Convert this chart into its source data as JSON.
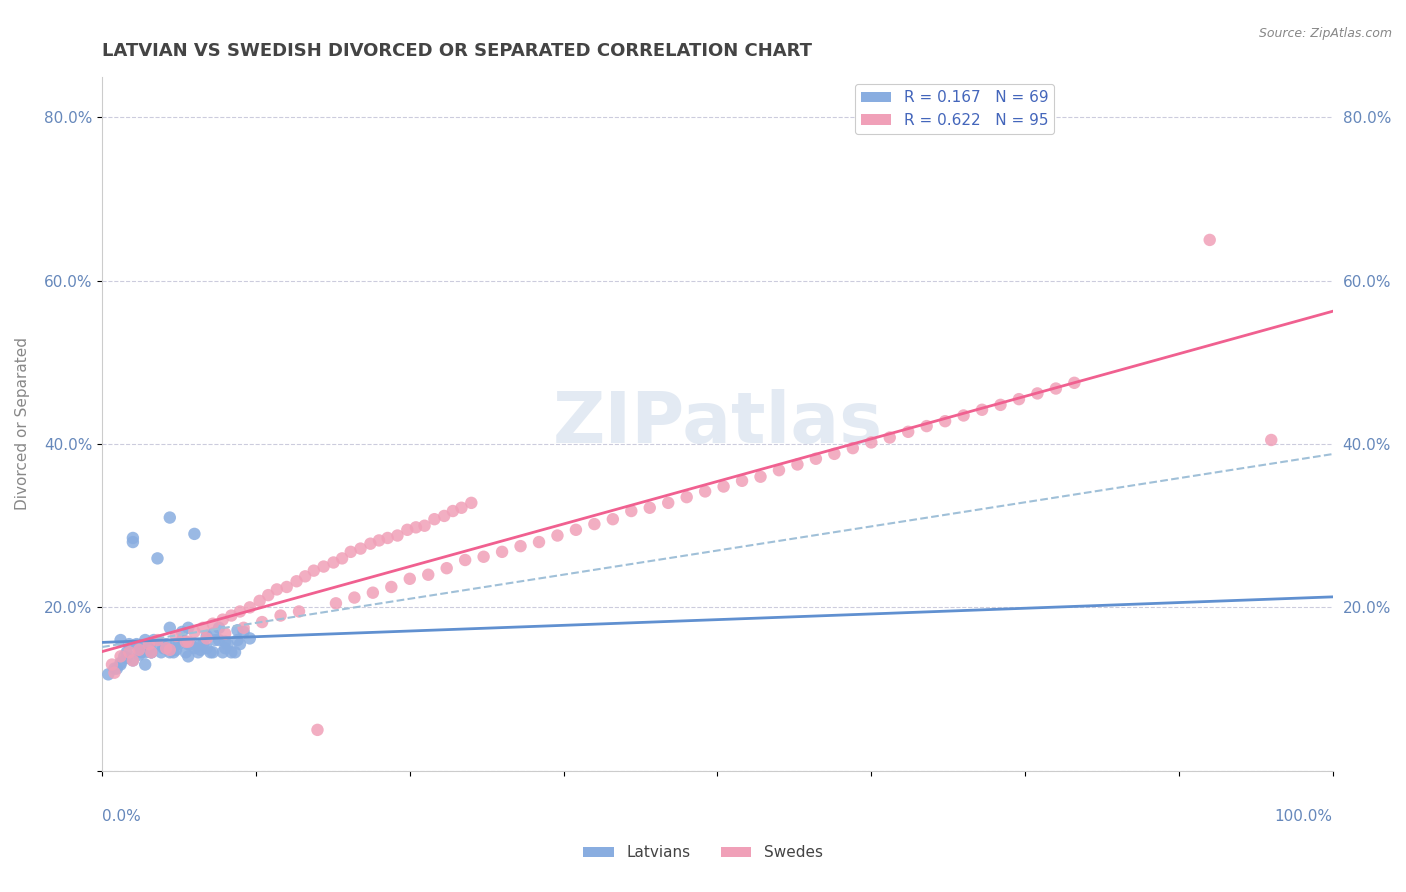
{
  "title": "LATVIAN VS SWEDISH DIVORCED OR SEPARATED CORRELATION CHART",
  "source": "Source: ZipAtlas.com",
  "ylabel": "Divorced or Separated",
  "legend_latvians": "Latvians",
  "legend_swedes": "Swedes",
  "r_latvian": 0.167,
  "n_latvian": 69,
  "r_swedish": 0.622,
  "n_swedish": 95,
  "xlim": [
    0,
    1.0
  ],
  "ylim": [
    0,
    0.85
  ],
  "yticks": [
    0.0,
    0.2,
    0.4,
    0.6,
    0.8
  ],
  "ytick_labels": [
    "",
    "20.0%",
    "40.0%",
    "60.0%",
    "80.0%"
  ],
  "color_latvian": "#89ADE0",
  "color_swedish": "#F0A0B8",
  "color_latvian_line": "#6090D0",
  "color_swedish_line": "#F06090",
  "color_dashed_line": "#A0C0D8",
  "tick_color": "#6688BB",
  "grid_color": "#CCCCDD",
  "latvian_scatter_x": [
    0.012,
    0.018,
    0.022,
    0.025,
    0.03,
    0.035,
    0.04,
    0.045,
    0.05,
    0.055,
    0.06,
    0.065,
    0.07,
    0.075,
    0.08,
    0.085,
    0.09,
    0.095,
    0.1,
    0.105,
    0.11,
    0.015,
    0.02,
    0.028,
    0.032,
    0.038,
    0.042,
    0.048,
    0.052,
    0.058,
    0.062,
    0.068,
    0.072,
    0.078,
    0.082,
    0.088,
    0.092,
    0.098,
    0.102,
    0.108,
    0.112,
    0.025,
    0.055,
    0.045,
    0.075,
    0.035,
    0.065,
    0.085,
    0.015,
    0.095,
    0.115,
    0.04,
    0.07,
    0.06,
    0.05,
    0.08,
    0.03,
    0.02,
    0.01,
    0.1,
    0.12,
    0.005,
    0.09,
    0.11,
    0.07,
    0.015,
    0.025,
    0.055,
    0.035
  ],
  "latvian_scatter_y": [
    0.125,
    0.14,
    0.155,
    0.135,
    0.15,
    0.16,
    0.145,
    0.155,
    0.15,
    0.145,
    0.155,
    0.16,
    0.14,
    0.15,
    0.155,
    0.15,
    0.145,
    0.16,
    0.15,
    0.145,
    0.16,
    0.16,
    0.145,
    0.155,
    0.145,
    0.15,
    0.16,
    0.145,
    0.155,
    0.145,
    0.155,
    0.145,
    0.155,
    0.145,
    0.155,
    0.145,
    0.16,
    0.145,
    0.155,
    0.145,
    0.155,
    0.28,
    0.31,
    0.26,
    0.29,
    0.13,
    0.17,
    0.165,
    0.13,
    0.175,
    0.17,
    0.145,
    0.155,
    0.148,
    0.152,
    0.148,
    0.142,
    0.138,
    0.125,
    0.158,
    0.162,
    0.118,
    0.168,
    0.172,
    0.175,
    0.132,
    0.285,
    0.175,
    0.145
  ],
  "swedish_scatter_x": [
    0.008,
    0.015,
    0.022,
    0.03,
    0.038,
    0.045,
    0.052,
    0.06,
    0.068,
    0.075,
    0.082,
    0.09,
    0.098,
    0.105,
    0.112,
    0.12,
    0.128,
    0.135,
    0.142,
    0.15,
    0.158,
    0.165,
    0.172,
    0.18,
    0.188,
    0.195,
    0.202,
    0.21,
    0.218,
    0.225,
    0.232,
    0.24,
    0.248,
    0.255,
    0.262,
    0.27,
    0.278,
    0.285,
    0.292,
    0.3,
    0.01,
    0.025,
    0.04,
    0.055,
    0.07,
    0.085,
    0.1,
    0.115,
    0.13,
    0.145,
    0.16,
    0.175,
    0.19,
    0.205,
    0.22,
    0.235,
    0.25,
    0.265,
    0.28,
    0.295,
    0.31,
    0.325,
    0.34,
    0.355,
    0.37,
    0.385,
    0.4,
    0.415,
    0.43,
    0.445,
    0.46,
    0.475,
    0.49,
    0.505,
    0.52,
    0.535,
    0.55,
    0.565,
    0.58,
    0.595,
    0.61,
    0.625,
    0.64,
    0.655,
    0.67,
    0.685,
    0.7,
    0.715,
    0.73,
    0.745,
    0.76,
    0.775,
    0.79,
    0.9,
    0.95
  ],
  "swedish_scatter_y": [
    0.13,
    0.14,
    0.145,
    0.148,
    0.155,
    0.16,
    0.15,
    0.165,
    0.158,
    0.17,
    0.175,
    0.18,
    0.185,
    0.19,
    0.195,
    0.2,
    0.208,
    0.215,
    0.222,
    0.225,
    0.232,
    0.238,
    0.245,
    0.25,
    0.255,
    0.26,
    0.268,
    0.272,
    0.278,
    0.282,
    0.285,
    0.288,
    0.295,
    0.298,
    0.3,
    0.308,
    0.312,
    0.318,
    0.322,
    0.328,
    0.12,
    0.135,
    0.145,
    0.148,
    0.158,
    0.162,
    0.168,
    0.175,
    0.182,
    0.19,
    0.195,
    0.05,
    0.205,
    0.212,
    0.218,
    0.225,
    0.235,
    0.24,
    0.248,
    0.258,
    0.262,
    0.268,
    0.275,
    0.28,
    0.288,
    0.295,
    0.302,
    0.308,
    0.318,
    0.322,
    0.328,
    0.335,
    0.342,
    0.348,
    0.355,
    0.36,
    0.368,
    0.375,
    0.382,
    0.388,
    0.395,
    0.402,
    0.408,
    0.415,
    0.422,
    0.428,
    0.435,
    0.442,
    0.448,
    0.455,
    0.462,
    0.468,
    0.475,
    0.65,
    0.405
  ]
}
